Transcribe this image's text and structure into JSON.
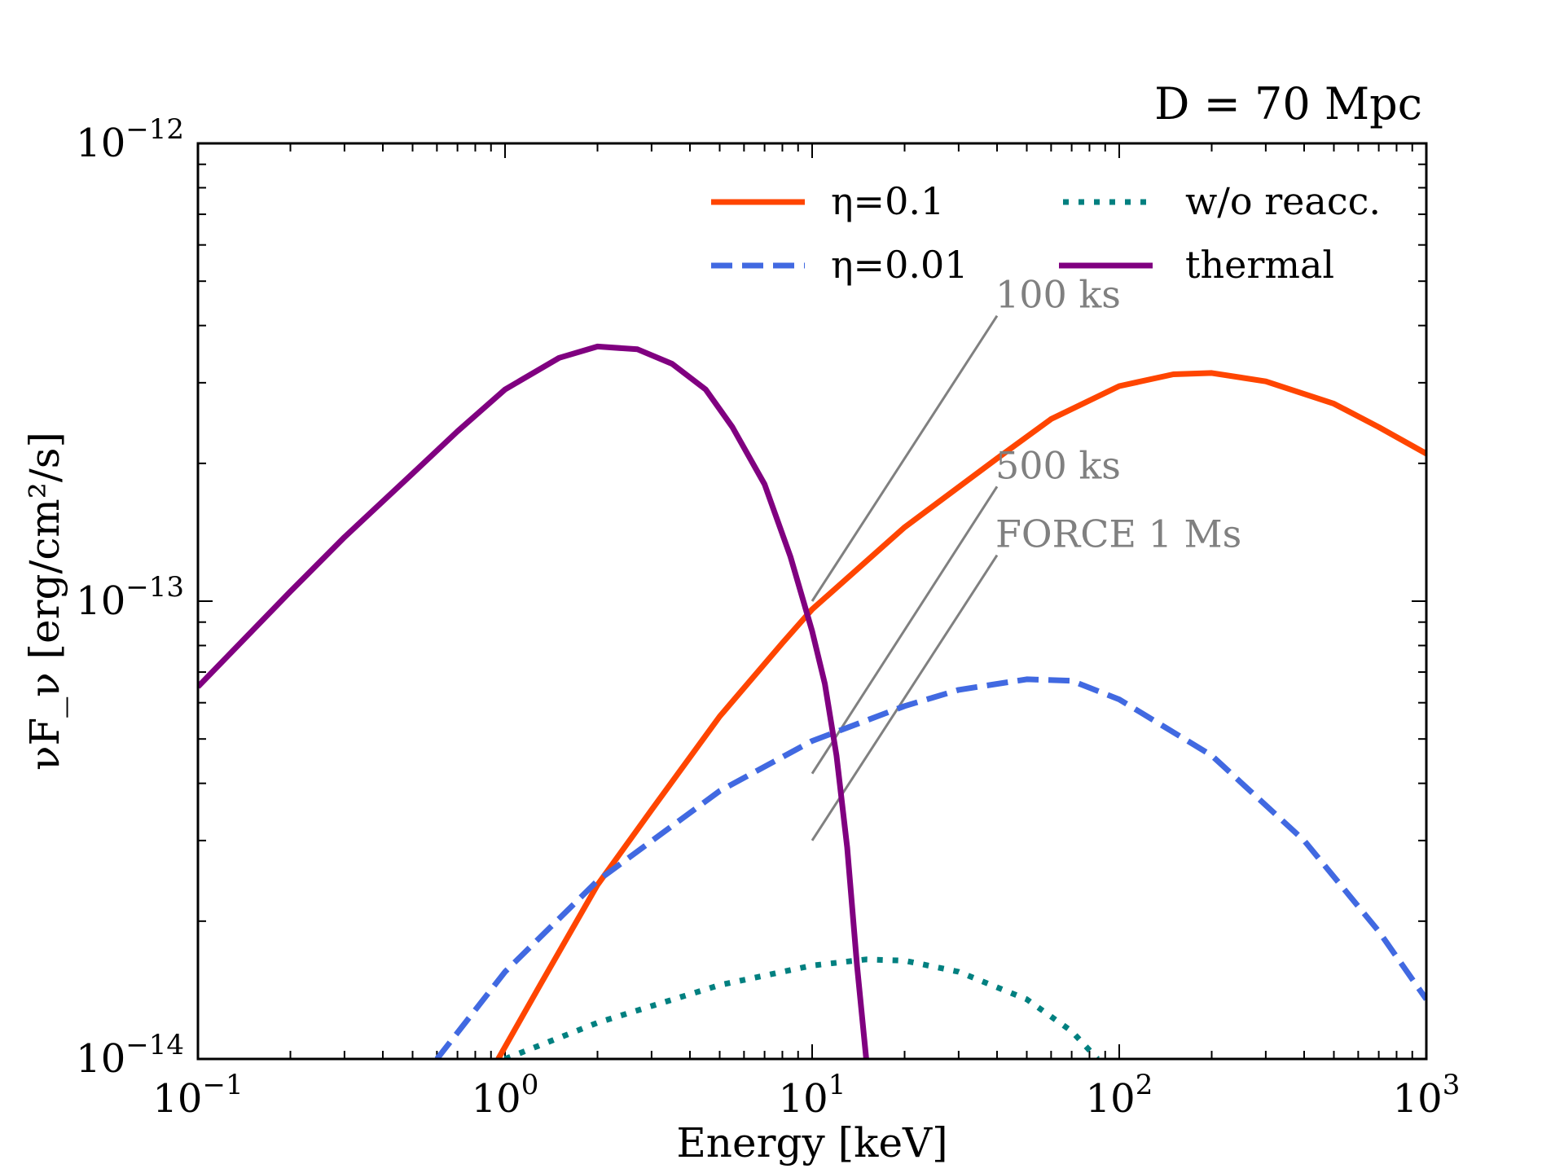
{
  "chart_data": {
    "type": "line",
    "title": "D = 70 Mpc",
    "xlabel": "Energy [keV]",
    "ylabel": "νF_ν [erg/cm²/s]",
    "xscale": "log",
    "yscale": "log",
    "xlim": [
      0.1,
      1000
    ],
    "ylim": [
      1e-14,
      1e-12
    ],
    "x_ticks": [
      {
        "value": 0.1,
        "base": "10",
        "exp": "−1"
      },
      {
        "value": 1,
        "base": "10",
        "exp": "0"
      },
      {
        "value": 10,
        "base": "10",
        "exp": "1"
      },
      {
        "value": 100,
        "base": "10",
        "exp": "2"
      },
      {
        "value": 1000,
        "base": "10",
        "exp": "3"
      }
    ],
    "y_ticks": [
      {
        "value": 1e-14,
        "base": "10",
        "exp": "−14"
      },
      {
        "value": 1e-13,
        "base": "10",
        "exp": "−13"
      },
      {
        "value": 1e-12,
        "base": "10",
        "exp": "−12"
      }
    ],
    "legend": {
      "position": "top-right",
      "entries": [
        {
          "label": "η=0.1",
          "color": "#ff4500",
          "style": "solid"
        },
        {
          "label": "η=0.01",
          "color": "#4169e1",
          "style": "dashed"
        },
        {
          "label": "w/o reacc.",
          "color": "#008080",
          "style": "dotted"
        },
        {
          "label": "thermal",
          "color": "#800080",
          "style": "solid"
        }
      ]
    },
    "series": [
      {
        "name": "η=0.1",
        "color": "#ff4500",
        "style": "solid",
        "points": [
          [
            0.95,
            1e-14
          ],
          [
            1.3,
            1.45e-14
          ],
          [
            2,
            2.4e-14
          ],
          [
            3,
            3.5e-14
          ],
          [
            5,
            5.6e-14
          ],
          [
            8,
            8.1e-14
          ],
          [
            10,
            9.6e-14
          ],
          [
            20,
            1.45e-13
          ],
          [
            40,
            2.05e-13
          ],
          [
            60,
            2.5e-13
          ],
          [
            100,
            2.95e-13
          ],
          [
            150,
            3.13e-13
          ],
          [
            200,
            3.15e-13
          ],
          [
            300,
            3.02e-13
          ],
          [
            500,
            2.7e-13
          ],
          [
            700,
            2.4e-13
          ],
          [
            1000,
            2.1e-13
          ]
        ]
      },
      {
        "name": "η=0.01",
        "color": "#4169e1",
        "style": "dashed",
        "points": [
          [
            0.6,
            1e-14
          ],
          [
            1,
            1.55e-14
          ],
          [
            2,
            2.45e-14
          ],
          [
            5,
            3.85e-14
          ],
          [
            10,
            4.95e-14
          ],
          [
            20,
            5.9e-14
          ],
          [
            30,
            6.4e-14
          ],
          [
            50,
            6.75e-14
          ],
          [
            70,
            6.7e-14
          ],
          [
            100,
            6.1e-14
          ],
          [
            200,
            4.6e-14
          ],
          [
            400,
            3e-14
          ],
          [
            700,
            1.9e-14
          ],
          [
            1000,
            1.35e-14
          ]
        ]
      },
      {
        "name": "w/o reacc.",
        "color": "#008080",
        "style": "dotted",
        "points": [
          [
            1,
            1e-14
          ],
          [
            2,
            1.2e-14
          ],
          [
            5,
            1.45e-14
          ],
          [
            10,
            1.6e-14
          ],
          [
            15,
            1.65e-14
          ],
          [
            20,
            1.64e-14
          ],
          [
            30,
            1.55e-14
          ],
          [
            50,
            1.35e-14
          ],
          [
            70,
            1.15e-14
          ],
          [
            85,
            1e-14
          ]
        ]
      },
      {
        "name": "thermal",
        "color": "#800080",
        "style": "solid",
        "points": [
          [
            0.1,
            6.5e-14
          ],
          [
            0.2,
            1.05e-13
          ],
          [
            0.3,
            1.38e-13
          ],
          [
            0.5,
            1.9e-13
          ],
          [
            0.7,
            2.35e-13
          ],
          [
            1,
            2.9e-13
          ],
          [
            1.5,
            3.4e-13
          ],
          [
            2,
            3.6e-13
          ],
          [
            2.7,
            3.55e-13
          ],
          [
            3.5,
            3.3e-13
          ],
          [
            4.5,
            2.9e-13
          ],
          [
            5.5,
            2.4e-13
          ],
          [
            7,
            1.8e-13
          ],
          [
            8.5,
            1.25e-13
          ],
          [
            10,
            8.6e-14
          ],
          [
            11,
            6.6e-14
          ],
          [
            12,
            4.6e-14
          ],
          [
            13,
            2.9e-14
          ],
          [
            14,
            1.6e-14
          ],
          [
            15,
            1e-14
          ]
        ]
      }
    ],
    "annotations": [
      {
        "label": "100 ks",
        "color": "#808080",
        "line": [
          [
            10,
            1e-13
          ],
          [
            40,
            4.2e-13
          ]
        ]
      },
      {
        "label": "500 ks",
        "color": "#808080",
        "line": [
          [
            10,
            4.2e-14
          ],
          [
            40,
            1.78e-13
          ]
        ]
      },
      {
        "label": "FORCE 1 Ms",
        "color": "#808080",
        "line": [
          [
            10,
            3e-14
          ],
          [
            40,
            1.26e-13
          ]
        ]
      }
    ]
  }
}
